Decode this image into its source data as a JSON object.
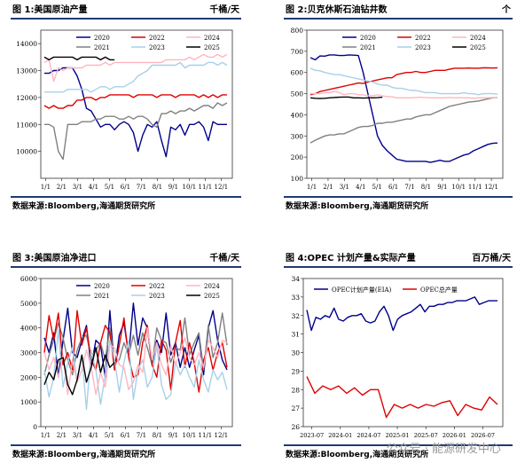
{
  "charts": [
    {
      "id": "p1",
      "title": "图 1:美国原油产量",
      "unit": "千桶/天",
      "source": "数据来源:Bloomberg,海通期货研究所"
    },
    {
      "id": "p2",
      "title": "图 2:贝克休斯石油钻井数",
      "unit": "个",
      "source": "数据来源:Bloomberg,海通期货研究所"
    },
    {
      "id": "p3",
      "title": "图 3:美国原油净进口",
      "unit": "千桶/天",
      "source": "数据来源:Bloomberg,海通期货研究所"
    },
    {
      "id": "p4",
      "title": "图 4:OPEC 计划产量&实际产量",
      "unit": "百万桶/天",
      "source": "数据来源:Bloomberg,海通期货研究所"
    }
  ],
  "watermark": "公众号 · 能源研发中心",
  "chart_data": [
    {
      "type": "line",
      "title": "图 1:美国原油产量",
      "ylabel": "千桶/天",
      "ylim": [
        9000,
        14500
      ],
      "yticks": [
        10000,
        11000,
        12000,
        13000,
        14000
      ],
      "xticks": [
        "1/1",
        "2/1",
        "3/1",
        "4/1",
        "5/1",
        "6/1",
        "7/1",
        "8/1",
        "9/1",
        "10/1",
        "11/1",
        "12/1"
      ],
      "grid": false,
      "legend": "top-center",
      "series": [
        {
          "name": "2020",
          "color": "#00008b",
          "values": [
            12900,
            12900,
            13000,
            13000,
            13100,
            13100,
            13100,
            12800,
            12300,
            11600,
            11500,
            11200,
            10900,
            11000,
            11000,
            10800,
            11000,
            11100,
            11000,
            10700,
            10000,
            10600,
            11000,
            10900,
            11100,
            10400,
            9800,
            10900,
            10800,
            11000,
            10600,
            11000,
            11000,
            11100,
            10900,
            10400,
            11100,
            11000,
            11000,
            11000
          ]
        },
        {
          "name": "2021",
          "color": "#808080",
          "values": [
            11000,
            11000,
            10900,
            10000,
            9700,
            11000,
            11000,
            11000,
            11100,
            11100,
            11100,
            11200,
            11200,
            11300,
            11300,
            11300,
            11200,
            11200,
            11300,
            11200,
            11300,
            11300,
            11200,
            11000,
            10900,
            11400,
            11400,
            11500,
            11400,
            11500,
            11500,
            11600,
            11500,
            11600,
            11700,
            11700,
            11600,
            11800,
            11700,
            11800
          ]
        },
        {
          "name": "2022",
          "color": "#e00000",
          "values": [
            11700,
            11600,
            11700,
            11600,
            11600,
            11700,
            11700,
            11900,
            11900,
            12000,
            12000,
            11900,
            12000,
            12000,
            12100,
            12100,
            12100,
            12100,
            12100,
            12000,
            12100,
            12100,
            12100,
            12100,
            12000,
            12100,
            12100,
            12100,
            12000,
            12100,
            12100,
            12100,
            12100,
            12000,
            12100,
            12000,
            12100,
            12000,
            12100,
            12100
          ]
        },
        {
          "name": "2023",
          "color": "#a8d0e8",
          "values": [
            12200,
            12200,
            12200,
            12200,
            12200,
            12300,
            12300,
            12300,
            12300,
            12300,
            12200,
            12300,
            12400,
            12400,
            12300,
            12400,
            12400,
            12400,
            12500,
            12600,
            12800,
            12900,
            13000,
            13200,
            13200,
            13200,
            13200,
            13200,
            13200,
            13300,
            13100,
            13200,
            13200,
            13200,
            13200,
            13300,
            13300,
            13200,
            13300,
            13200
          ]
        },
        {
          "name": "2024",
          "color": "#ffb6c1",
          "values": [
            13300,
            13400,
            12600,
            13100,
            13000,
            13100,
            13100,
            13100,
            13100,
            13200,
            13200,
            13200,
            13200,
            13300,
            13200,
            13300,
            13300,
            13300,
            13300,
            13300,
            13300,
            13300,
            13300,
            13300,
            13300,
            13300,
            13400,
            13400,
            13400,
            13400,
            13400,
            13500,
            13400,
            13500,
            13600,
            13500,
            13500,
            13600,
            13500,
            13600
          ]
        },
        {
          "name": "2025",
          "color": "#000000",
          "values": [
            13500,
            13400,
            13500,
            13500,
            13500,
            13500,
            13500,
            13400,
            13500,
            13500,
            13500,
            13500,
            13400,
            13500,
            13400,
            13400
          ]
        }
      ]
    },
    {
      "type": "line",
      "title": "图 2:贝克休斯石油钻井数",
      "ylabel": "个",
      "ylim": [
        100,
        800
      ],
      "yticks": [
        100,
        200,
        300,
        400,
        500,
        600,
        700,
        800
      ],
      "xticks": [
        "1/1",
        "2/1",
        "3/1",
        "4/1",
        "5/1",
        "6/1",
        "7/1",
        "8/1",
        "9/1",
        "10/1",
        "11/1",
        "12/1"
      ],
      "grid": false,
      "legend": "top-center",
      "series": [
        {
          "name": "2020",
          "color": "#00008b",
          "values": [
            670,
            660,
            678,
            677,
            683,
            683,
            680,
            680,
            683,
            682,
            680,
            600,
            500,
            400,
            300,
            255,
            230,
            210,
            190,
            185,
            180,
            180,
            180,
            180,
            180,
            175,
            180,
            185,
            180,
            180,
            190,
            200,
            210,
            215,
            230,
            240,
            250,
            260,
            265,
            267
          ]
        },
        {
          "name": "2021",
          "color": "#808080",
          "values": [
            267,
            280,
            290,
            300,
            305,
            305,
            310,
            310,
            320,
            330,
            340,
            345,
            345,
            350,
            360,
            360,
            365,
            365,
            370,
            375,
            380,
            380,
            390,
            395,
            400,
            400,
            410,
            420,
            430,
            440,
            445,
            450,
            455,
            460,
            462,
            465,
            470,
            475,
            480,
            482
          ]
        },
        {
          "name": "2022",
          "color": "#e00000",
          "values": [
            495,
            500,
            510,
            515,
            520,
            525,
            530,
            535,
            540,
            545,
            550,
            548,
            555,
            560,
            565,
            570,
            575,
            575,
            590,
            595,
            600,
            600,
            605,
            600,
            600,
            605,
            610,
            610,
            610,
            615,
            620,
            620,
            620,
            621,
            620,
            620,
            622,
            622,
            621,
            622
          ]
        },
        {
          "name": "2023",
          "color": "#a8d0e8",
          "values": [
            620,
            610,
            608,
            600,
            595,
            590,
            590,
            585,
            580,
            575,
            570,
            565,
            560,
            555,
            545,
            540,
            540,
            530,
            525,
            525,
            520,
            515,
            515,
            510,
            505,
            505,
            505,
            500,
            500,
            500,
            500,
            500,
            505,
            500,
            500,
            495,
            500,
            500,
            500,
            497
          ]
        },
        {
          "name": "2024",
          "color": "#ffb6c1",
          "values": [
            500,
            500,
            500,
            505,
            505,
            510,
            505,
            495,
            500,
            500,
            495,
            495,
            490,
            490,
            495,
            490,
            485,
            485,
            480,
            480,
            480,
            480,
            482,
            483,
            482,
            480,
            480,
            480,
            480,
            482,
            480,
            481,
            480,
            480,
            478,
            480,
            480,
            480,
            482,
            481
          ]
        },
        {
          "name": "2025",
          "color": "#000000",
          "values": [
            480,
            478,
            477,
            478,
            480,
            482,
            483,
            484,
            484,
            480,
            480,
            479,
            480,
            480,
            481,
            483
          ]
        }
      ]
    },
    {
      "type": "line",
      "title": "图 3:美国原油净进口",
      "ylabel": "千桶/天",
      "ylim": [
        0,
        6000
      ],
      "yticks": [
        0,
        1000,
        2000,
        3000,
        4000,
        5000,
        6000
      ],
      "xticks": [
        "1/1",
        "2/1",
        "3/1",
        "4/1",
        "5/1",
        "6/1",
        "7/1",
        "8/1",
        "9/1",
        "10/1",
        "11/1",
        "12/1"
      ],
      "grid": false,
      "legend": "top-center",
      "series": [
        {
          "name": "2020",
          "color": "#00008b",
          "values": [
            3600,
            3000,
            3800,
            2000,
            3500,
            4800,
            3000,
            2800,
            3500,
            4100,
            2400,
            3500,
            3300,
            2000,
            4700,
            2300,
            3700,
            4200,
            2900,
            5000,
            3300,
            4400,
            4000,
            2500,
            3500,
            3000,
            4600,
            2900,
            3400,
            2400,
            3200,
            2400,
            3100,
            3700,
            2100,
            4000,
            4700,
            3500,
            2700,
            2300
          ]
        },
        {
          "name": "2021",
          "color": "#808080",
          "values": [
            2100,
            2900,
            3500,
            4200,
            3600,
            2700,
            2100,
            3100,
            3600,
            3700,
            2800,
            3100,
            3400,
            2700,
            4000,
            2600,
            2700,
            3400,
            2900,
            3700,
            2900,
            3800,
            3200,
            2500,
            4000,
            3500,
            3400,
            2600,
            3200,
            3100,
            4400,
            2900,
            3400,
            3800,
            2300,
            4100,
            2800,
            3400,
            4600,
            3300
          ]
        },
        {
          "name": "2022",
          "color": "#e00000",
          "values": [
            3000,
            4500,
            3500,
            4600,
            2500,
            3000,
            2300,
            4700,
            3300,
            4000,
            2700,
            2300,
            3400,
            4100,
            3800,
            2300,
            3300,
            4400,
            2800,
            2000,
            2100,
            3400,
            4100,
            2500,
            2000,
            3500,
            3100,
            1500,
            3400,
            4300,
            2400,
            3400,
            2600,
            1400,
            2700,
            3200,
            2300,
            3000,
            3400,
            2400
          ]
        },
        {
          "name": "2023",
          "color": "#a8d0e8",
          "values": [
            2300,
            1200,
            2000,
            3900,
            1600,
            2600,
            3200,
            1800,
            2900,
            700,
            3100,
            2300,
            900,
            2100,
            3500,
            2700,
            1400,
            2600,
            3500,
            1100,
            2300,
            2700,
            1600,
            2000,
            3300,
            1700,
            1100,
            1300,
            2600,
            2100,
            2500,
            2000,
            1600,
            2700,
            1900,
            1400,
            2300,
            1900,
            2200,
            1500
          ]
        },
        {
          "name": "2024",
          "color": "#ffb6c1",
          "values": [
            3000,
            2300,
            2800,
            2000,
            2900,
            1300,
            2700,
            1800,
            2300,
            3100,
            2400,
            1300,
            2200,
            1600,
            3300,
            3200,
            2500,
            2400,
            1500,
            1800,
            2500,
            2200,
            4000,
            2700,
            3400,
            2500,
            2100,
            3300,
            2500,
            3000,
            3600,
            2800,
            2500,
            3000,
            2400,
            3500,
            3200,
            2800,
            3500,
            3400
          ]
        },
        {
          "name": "2025",
          "color": "#000000",
          "values": [
            1700,
            2200,
            1900,
            2700,
            2800,
            1700,
            1300,
            1900,
            2900,
            1800,
            2400,
            3200,
            2200,
            2900,
            2400,
            2600
          ]
        }
      ]
    },
    {
      "type": "line",
      "title": "图 4:OPEC 计划产量&实际产量",
      "ylabel": "百万桶/天",
      "ylim": [
        26,
        34
      ],
      "yticks": [
        26,
        27,
        28,
        29,
        30,
        31,
        32,
        33,
        34
      ],
      "xticks": [
        "2023-07",
        "2024-01",
        "2024-07",
        "2025-01",
        "2025-07",
        "2026-01",
        "2026-07"
      ],
      "grid": false,
      "legend": "top-center",
      "series": [
        {
          "name": "OPEC计划产量(EIA)",
          "color": "#00008b",
          "values": [
            32.3,
            31.2,
            31.9,
            31.8,
            32.0,
            31.9,
            32.4,
            31.8,
            31.7,
            31.9,
            32.0,
            32.0,
            32.1,
            31.7,
            31.6,
            31.7,
            32.2,
            32.5,
            32.0,
            31.2,
            31.8,
            32.0,
            32.1,
            32.2,
            32.4,
            32.6,
            32.2,
            32.5,
            32.5,
            32.6,
            32.6,
            32.7,
            32.7,
            32.8,
            32.8,
            32.8,
            32.9,
            33.0,
            32.6,
            32.7,
            32.8,
            32.8,
            32.8
          ]
        },
        {
          "name": "OPEC总产量",
          "color": "#e00000",
          "values": [
            28.7,
            27.8,
            28.2,
            28.0,
            28.2,
            27.8,
            28.1,
            27.7,
            28.0,
            28.0,
            26.5,
            27.2,
            27.0,
            27.2,
            27.0,
            27.2,
            27.1,
            27.3,
            27.4,
            26.6,
            27.2,
            27.0,
            26.9,
            27.6,
            27.2
          ]
        }
      ]
    }
  ]
}
